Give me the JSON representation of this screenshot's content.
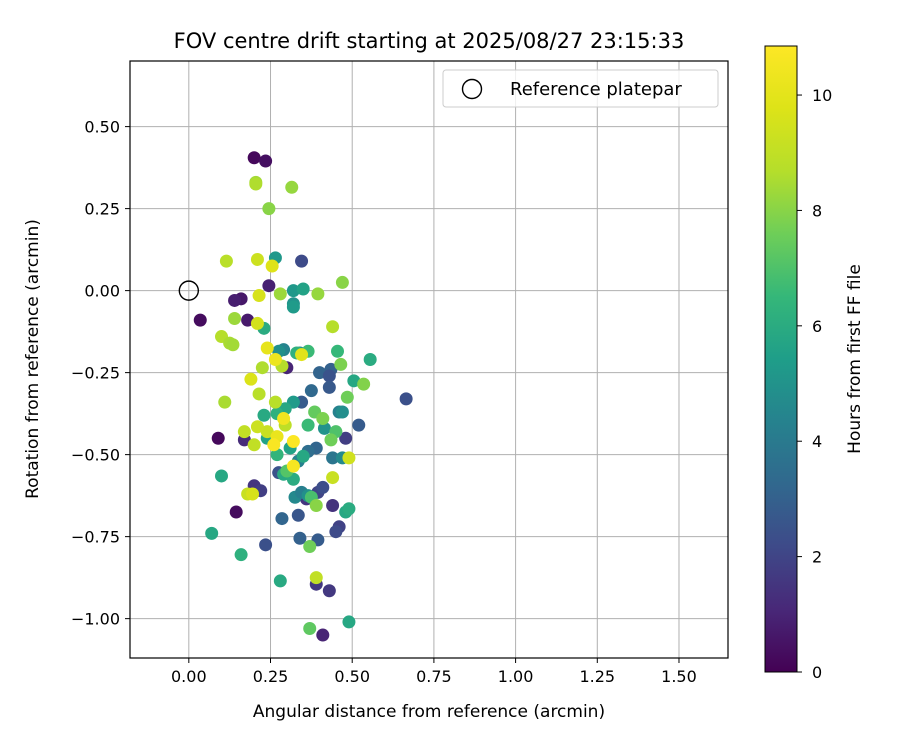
{
  "chart_data": {
    "type": "scatter",
    "title": "FOV centre drift starting at 2025/08/27 23:15:33",
    "xlabel": "Angular distance from reference (arcmin)",
    "ylabel": "Rotation from reference (arcmin)",
    "xlim": [
      -0.18,
      1.65
    ],
    "ylim": [
      -1.12,
      0.7
    ],
    "x_ticks": [
      0.0,
      0.25,
      0.5,
      0.75,
      1.0,
      1.25,
      1.5
    ],
    "x_tick_labels": [
      "0.00",
      "0.25",
      "0.50",
      "0.75",
      "1.00",
      "1.25",
      "1.50"
    ],
    "y_ticks": [
      0.5,
      0.25,
      0.0,
      -0.25,
      -0.5,
      -0.75,
      -1.0
    ],
    "y_tick_labels": [
      "0.50",
      "0.25",
      "0.00",
      "−0.25",
      "−0.50",
      "−0.75",
      "−1.00"
    ],
    "grid": true,
    "legend": {
      "position": "top-right",
      "entries": [
        "Reference platepar"
      ]
    },
    "reference_point": {
      "x": 0.0,
      "y": 0.0
    },
    "colorbar": {
      "label": "Hours from first FF file",
      "range": [
        0,
        10.85
      ],
      "ticks": [
        0,
        2,
        4,
        6,
        8,
        10
      ],
      "tick_labels": [
        "0",
        "2",
        "4",
        "6",
        "8",
        "10"
      ],
      "colormap": "viridis"
    },
    "series": [
      {
        "points": [
          {
            "x": 0.2,
            "y": 0.405,
            "c": 0.2
          },
          {
            "x": 0.235,
            "y": 0.395,
            "c": 0.4
          },
          {
            "x": 0.035,
            "y": -0.09,
            "c": 0.3
          },
          {
            "x": 0.09,
            "y": -0.45,
            "c": 0.2
          },
          {
            "x": 0.145,
            "y": -0.675,
            "c": 0.3
          },
          {
            "x": 0.16,
            "y": -0.025,
            "c": 0.6
          },
          {
            "x": 0.14,
            "y": -0.03,
            "c": 0.8
          },
          {
            "x": 0.18,
            "y": -0.09,
            "c": 0.7
          },
          {
            "x": 0.245,
            "y": 0.015,
            "c": 0.9
          },
          {
            "x": 0.3,
            "y": -0.235,
            "c": 1.0
          },
          {
            "x": 0.17,
            "y": -0.455,
            "c": 1.2
          },
          {
            "x": 0.41,
            "y": -1.05,
            "c": 1.0
          },
          {
            "x": 0.2,
            "y": -0.595,
            "c": 1.5
          },
          {
            "x": 0.22,
            "y": -0.61,
            "c": 1.8
          },
          {
            "x": 0.36,
            "y": -0.635,
            "c": 1.5
          },
          {
            "x": 0.39,
            "y": -0.895,
            "c": 1.6
          },
          {
            "x": 0.43,
            "y": -0.915,
            "c": 1.6
          },
          {
            "x": 0.46,
            "y": -0.72,
            "c": 1.9
          },
          {
            "x": 0.45,
            "y": -0.735,
            "c": 2.2
          },
          {
            "x": 0.395,
            "y": -0.615,
            "c": 2.0
          },
          {
            "x": 0.41,
            "y": -0.6,
            "c": 2.3
          },
          {
            "x": 0.44,
            "y": -0.655,
            "c": 1.4
          },
          {
            "x": 0.345,
            "y": 0.09,
            "c": 2.2
          },
          {
            "x": 0.235,
            "y": -0.775,
            "c": 2.4
          },
          {
            "x": 0.275,
            "y": -0.555,
            "c": 2.5
          },
          {
            "x": 0.335,
            "y": -0.685,
            "c": 2.6
          },
          {
            "x": 0.395,
            "y": -0.76,
            "c": 2.8
          },
          {
            "x": 0.285,
            "y": -0.695,
            "c": 3.2
          },
          {
            "x": 0.34,
            "y": -0.755,
            "c": 3.0
          },
          {
            "x": 0.48,
            "y": -0.45,
            "c": 1.8
          },
          {
            "x": 0.52,
            "y": -0.41,
            "c": 2.8
          },
          {
            "x": 0.665,
            "y": -0.33,
            "c": 2.4
          },
          {
            "x": 0.4,
            "y": -0.25,
            "c": 3.1
          },
          {
            "x": 0.435,
            "y": -0.24,
            "c": 3.0
          },
          {
            "x": 0.43,
            "y": -0.26,
            "c": 2.5
          },
          {
            "x": 0.43,
            "y": -0.295,
            "c": 2.7
          },
          {
            "x": 0.375,
            "y": -0.305,
            "c": 3.3
          },
          {
            "x": 0.345,
            "y": -0.34,
            "c": 2.8
          },
          {
            "x": 0.39,
            "y": -0.48,
            "c": 3.2
          },
          {
            "x": 0.365,
            "y": -0.49,
            "c": 3.5
          },
          {
            "x": 0.44,
            "y": -0.51,
            "c": 3.8
          },
          {
            "x": 0.335,
            "y": -0.52,
            "c": 4.3
          },
          {
            "x": 0.325,
            "y": -0.63,
            "c": 4.6
          },
          {
            "x": 0.345,
            "y": -0.615,
            "c": 4.2
          },
          {
            "x": 0.365,
            "y": -0.625,
            "c": 4.9
          },
          {
            "x": 0.415,
            "y": -0.42,
            "c": 5.0
          },
          {
            "x": 0.46,
            "y": -0.37,
            "c": 4.3
          },
          {
            "x": 0.47,
            "y": -0.37,
            "c": 4.8
          },
          {
            "x": 0.47,
            "y": -0.51,
            "c": 4.6
          },
          {
            "x": 0.34,
            "y": -0.19,
            "c": 4.8
          },
          {
            "x": 0.29,
            "y": -0.18,
            "c": 4.4
          },
          {
            "x": 0.32,
            "y": -0.04,
            "c": 5.0
          },
          {
            "x": 0.32,
            "y": -0.05,
            "c": 5.3
          },
          {
            "x": 0.32,
            "y": 0.0,
            "c": 5.2
          },
          {
            "x": 0.35,
            "y": 0.005,
            "c": 5.6
          },
          {
            "x": 0.265,
            "y": 0.1,
            "c": 5.2
          },
          {
            "x": 0.275,
            "y": -0.185,
            "c": 4.9
          },
          {
            "x": 0.23,
            "y": -0.115,
            "c": 6.0
          },
          {
            "x": 0.33,
            "y": -0.19,
            "c": 6.2
          },
          {
            "x": 0.32,
            "y": -0.34,
            "c": 5.3
          },
          {
            "x": 0.295,
            "y": -0.36,
            "c": 5.8
          },
          {
            "x": 0.27,
            "y": -0.375,
            "c": 6.2
          },
          {
            "x": 0.23,
            "y": -0.38,
            "c": 5.9
          },
          {
            "x": 0.24,
            "y": -0.45,
            "c": 5.6
          },
          {
            "x": 0.31,
            "y": -0.48,
            "c": 5.6
          },
          {
            "x": 0.35,
            "y": -0.505,
            "c": 5.8
          },
          {
            "x": 0.29,
            "y": -0.56,
            "c": 5.9
          },
          {
            "x": 0.32,
            "y": -0.575,
            "c": 6.0
          },
          {
            "x": 0.48,
            "y": -0.675,
            "c": 5.8
          },
          {
            "x": 0.49,
            "y": -0.665,
            "c": 6.0
          },
          {
            "x": 0.49,
            "y": -1.01,
            "c": 5.8
          },
          {
            "x": 0.28,
            "y": -0.885,
            "c": 5.9
          },
          {
            "x": 0.07,
            "y": -0.74,
            "c": 5.8
          },
          {
            "x": 0.1,
            "y": -0.565,
            "c": 5.8
          },
          {
            "x": 0.16,
            "y": -0.805,
            "c": 6.2
          },
          {
            "x": 0.555,
            "y": -0.21,
            "c": 6.0
          },
          {
            "x": 0.505,
            "y": -0.275,
            "c": 5.8
          },
          {
            "x": 0.455,
            "y": -0.185,
            "c": 6.5
          },
          {
            "x": 0.365,
            "y": -0.185,
            "c": 6.6
          },
          {
            "x": 0.365,
            "y": -0.41,
            "c": 6.6
          },
          {
            "x": 0.27,
            "y": -0.5,
            "c": 6.4
          },
          {
            "x": 0.45,
            "y": -0.43,
            "c": 7.0
          },
          {
            "x": 0.3,
            "y": -0.55,
            "c": 7.1
          },
          {
            "x": 0.375,
            "y": -0.63,
            "c": 6.9
          },
          {
            "x": 0.37,
            "y": -1.03,
            "c": 7.3
          },
          {
            "x": 0.37,
            "y": -0.78,
            "c": 7.6
          },
          {
            "x": 0.39,
            "y": -0.655,
            "c": 8.0
          },
          {
            "x": 0.385,
            "y": -0.37,
            "c": 7.4
          },
          {
            "x": 0.41,
            "y": -0.39,
            "c": 7.8
          },
          {
            "x": 0.435,
            "y": -0.455,
            "c": 7.6
          },
          {
            "x": 0.465,
            "y": -0.225,
            "c": 7.8
          },
          {
            "x": 0.485,
            "y": -0.325,
            "c": 7.6
          },
          {
            "x": 0.535,
            "y": -0.285,
            "c": 7.9
          },
          {
            "x": 0.47,
            "y": 0.025,
            "c": 8.0
          },
          {
            "x": 0.395,
            "y": -0.01,
            "c": 8.2
          },
          {
            "x": 0.315,
            "y": 0.315,
            "c": 8.2
          },
          {
            "x": 0.245,
            "y": 0.25,
            "c": 8.0
          },
          {
            "x": 0.205,
            "y": 0.33,
            "c": 8.4
          },
          {
            "x": 0.205,
            "y": 0.325,
            "c": 8.6
          },
          {
            "x": 0.28,
            "y": -0.01,
            "c": 8.3
          },
          {
            "x": 0.14,
            "y": -0.085,
            "c": 8.3
          },
          {
            "x": 0.1,
            "y": -0.14,
            "c": 8.7
          },
          {
            "x": 0.125,
            "y": -0.16,
            "c": 8.5
          },
          {
            "x": 0.135,
            "y": -0.165,
            "c": 8.4
          },
          {
            "x": 0.225,
            "y": -0.235,
            "c": 8.6
          },
          {
            "x": 0.285,
            "y": -0.23,
            "c": 8.7
          },
          {
            "x": 0.11,
            "y": -0.34,
            "c": 8.5
          },
          {
            "x": 0.215,
            "y": -0.315,
            "c": 8.8
          },
          {
            "x": 0.265,
            "y": -0.34,
            "c": 8.8
          },
          {
            "x": 0.18,
            "y": -0.62,
            "c": 9.2
          },
          {
            "x": 0.17,
            "y": -0.43,
            "c": 9.0
          },
          {
            "x": 0.2,
            "y": -0.47,
            "c": 9.0
          },
          {
            "x": 0.24,
            "y": -0.43,
            "c": 9.2
          },
          {
            "x": 0.21,
            "y": -0.415,
            "c": 9.3
          },
          {
            "x": 0.295,
            "y": -0.41,
            "c": 8.9
          },
          {
            "x": 0.39,
            "y": -0.875,
            "c": 9.0
          },
          {
            "x": 0.195,
            "y": -0.62,
            "c": 9.6
          },
          {
            "x": 0.44,
            "y": -0.57,
            "c": 9.2
          },
          {
            "x": 0.49,
            "y": -0.51,
            "c": 9.4
          },
          {
            "x": 0.44,
            "y": -0.11,
            "c": 8.7
          },
          {
            "x": 0.115,
            "y": 0.09,
            "c": 8.8
          },
          {
            "x": 0.21,
            "y": 0.095,
            "c": 9.3
          },
          {
            "x": 0.215,
            "y": -0.015,
            "c": 9.6
          },
          {
            "x": 0.21,
            "y": -0.1,
            "c": 9.5
          },
          {
            "x": 0.255,
            "y": 0.075,
            "c": 9.8
          },
          {
            "x": 0.345,
            "y": -0.195,
            "c": 9.9
          },
          {
            "x": 0.19,
            "y": -0.27,
            "c": 9.7
          },
          {
            "x": 0.24,
            "y": -0.175,
            "c": 10.1
          },
          {
            "x": 0.265,
            "y": -0.21,
            "c": 10.3
          },
          {
            "x": 0.27,
            "y": -0.445,
            "c": 10.2
          },
          {
            "x": 0.29,
            "y": -0.39,
            "c": 10.4
          },
          {
            "x": 0.32,
            "y": -0.535,
            "c": 10.6
          },
          {
            "x": 0.26,
            "y": -0.47,
            "c": 10.7
          },
          {
            "x": 0.32,
            "y": -0.46,
            "c": 10.8
          }
        ]
      }
    ]
  }
}
